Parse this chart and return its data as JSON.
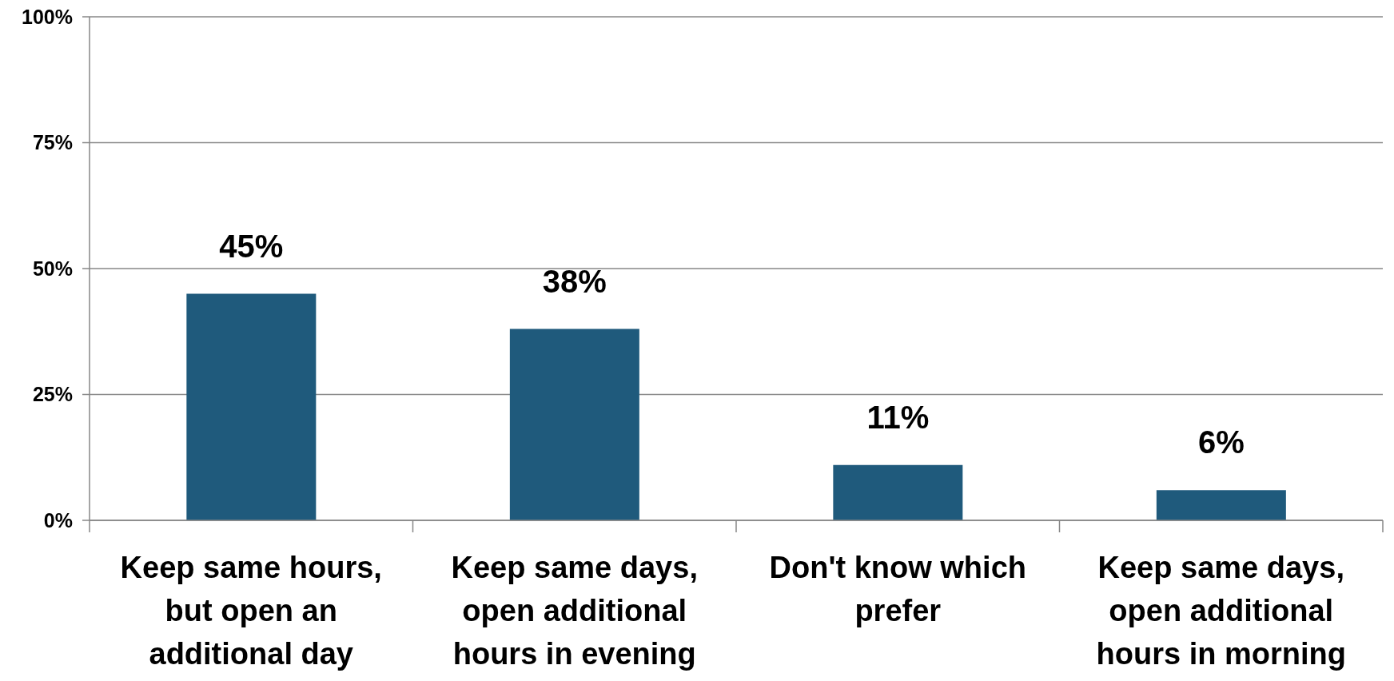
{
  "chart_data": {
    "type": "bar",
    "categories": [
      "Keep same hours, but open an additional day",
      "Keep same days, open additional hours in evening",
      "Don't know which prefer",
      "Keep same days, open additional hours in morning"
    ],
    "values": [
      45,
      38,
      11,
      6
    ],
    "color": "#1f5a7c",
    "value_labels": [
      "45%",
      "38%",
      "11%",
      "6%"
    ],
    "ylim": [
      0,
      100
    ],
    "yticks": [
      {
        "value": 0,
        "label": "0%"
      },
      {
        "value": 25,
        "label": "25%"
      },
      {
        "value": 50,
        "label": "50%"
      },
      {
        "value": 75,
        "label": "75%"
      },
      {
        "value": 100,
        "label": "100%"
      }
    ],
    "grid": "y"
  }
}
